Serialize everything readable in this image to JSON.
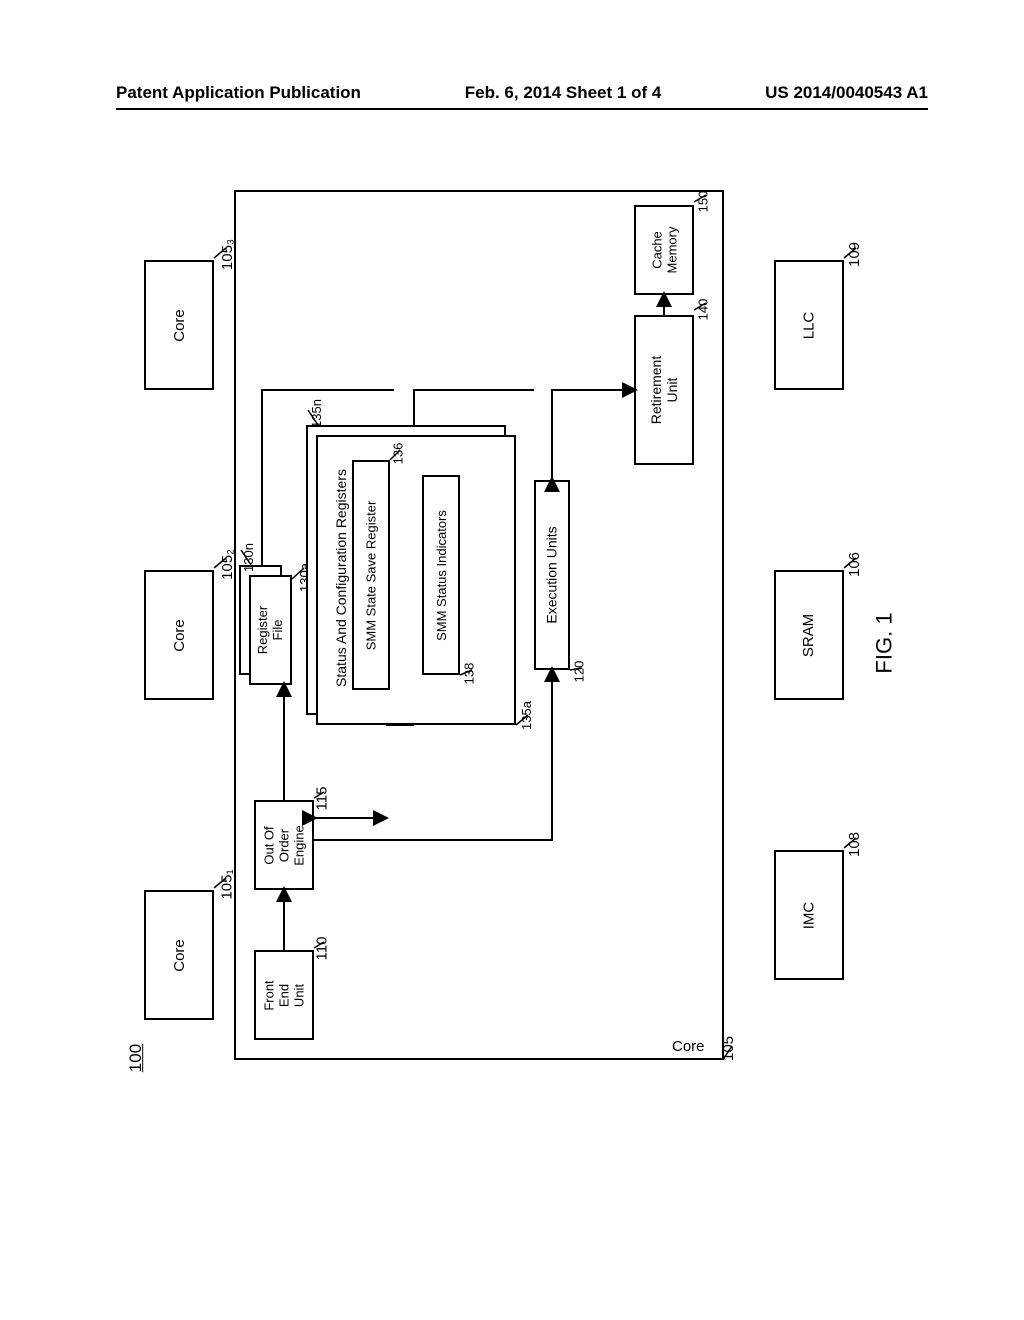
{
  "header": {
    "left": "Patent Application Publication",
    "center": "Feb. 6, 2014  Sheet 1 of 4",
    "right": "US 2014/0040543 A1"
  },
  "figure_label": "FIG. 1",
  "main_ref": "100",
  "boxes": {
    "core_top1": {
      "label": "Core",
      "ref": "105₁"
    },
    "core_top2": {
      "label": "Core",
      "ref": "105₂"
    },
    "core_top3": {
      "label": "Core",
      "ref": "105₃"
    },
    "core_main": {
      "label": "Core",
      "ref": "105"
    },
    "front_end": {
      "label": "Front\nEnd\nUnit",
      "ref": "110"
    },
    "ooo_engine": {
      "label": "Out Of\nOrder\nEngine",
      "ref": "115"
    },
    "reg_file": {
      "label": "Register\nFile",
      "ref_a": "130a",
      "ref_n": "130n"
    },
    "status_cfg": {
      "label": "Status And Configuration Registers",
      "ref_a": "135a",
      "ref_n": "135n"
    },
    "smm_state": {
      "label": "SMM State Save Register",
      "ref": "136"
    },
    "smm_status": {
      "label": "SMM Status Indicators",
      "ref": "138"
    },
    "exec_units": {
      "label": "Execution Units",
      "ref": "120"
    },
    "retirement": {
      "label": "Retirement\nUnit",
      "ref": "140"
    },
    "cache": {
      "label": "Cache\nMemory",
      "ref": "150"
    },
    "imc": {
      "label": "IMC",
      "ref": "108"
    },
    "sram": {
      "label": "SRAM",
      "ref": "106"
    },
    "llc": {
      "label": "LLC",
      "ref": "109"
    }
  },
  "style": {
    "stroke": "#000000",
    "stroke_width": 2,
    "font_family": "Arial",
    "background": "#ffffff"
  }
}
